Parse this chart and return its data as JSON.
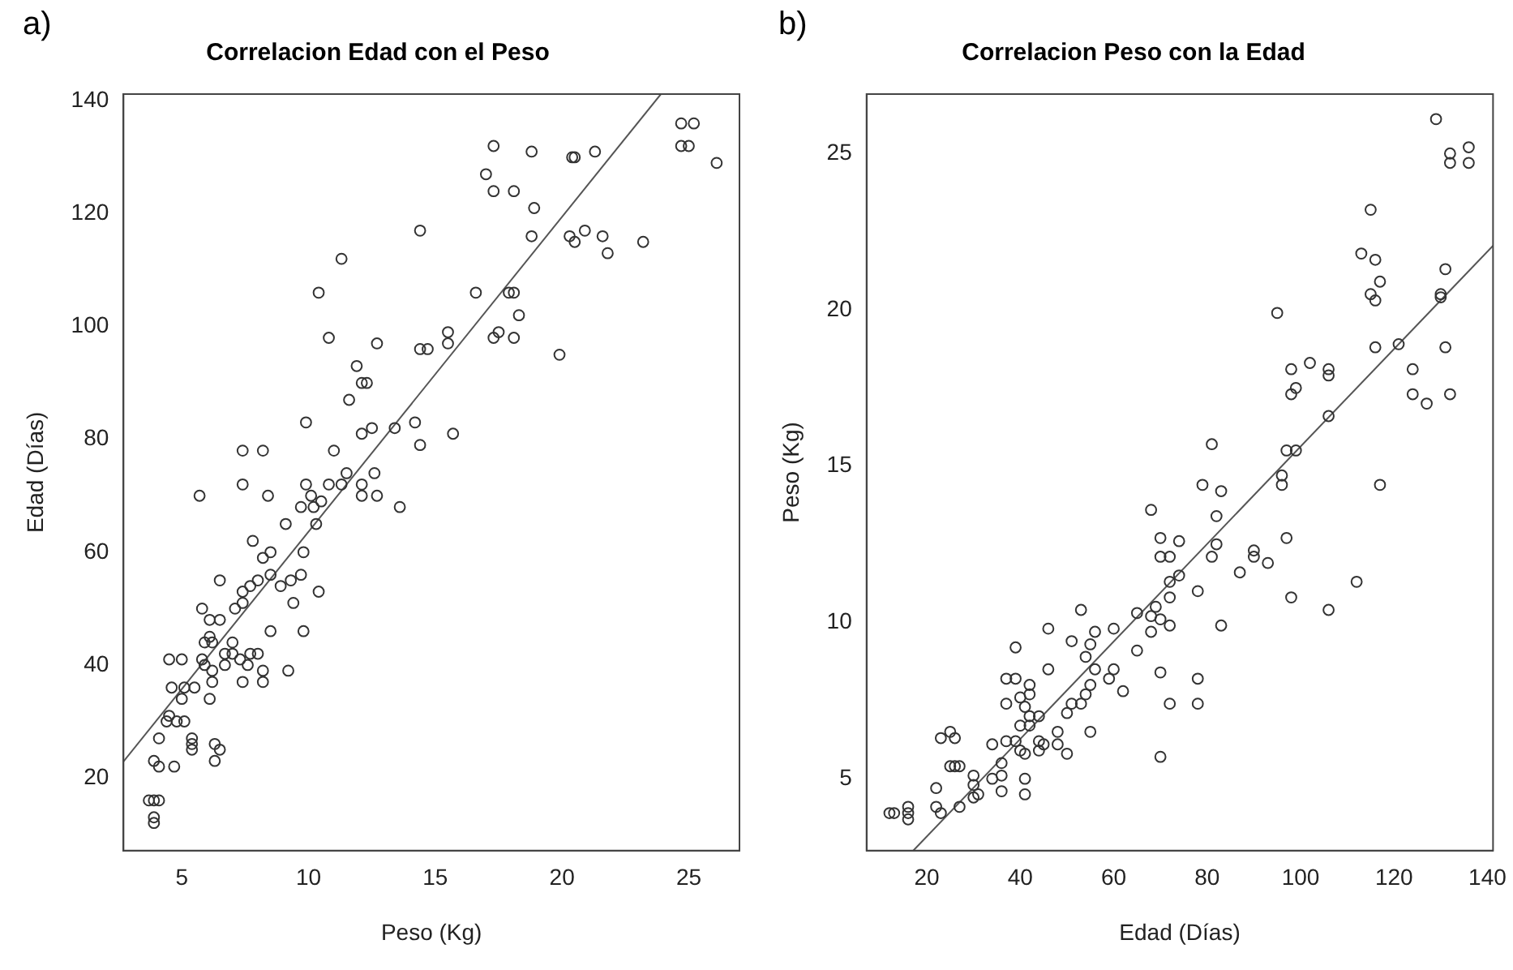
{
  "chart_data": [
    {
      "type": "scatter",
      "title": "Correlacion Edad con el Peso",
      "xlabel": "Peso (Kg)",
      "ylabel": "Edad (Días)",
      "annotations": [
        "a)"
      ],
      "xlim": [
        2.7,
        27.0
      ],
      "ylim": [
        7.1,
        141.2
      ],
      "xticks": [
        5,
        10,
        15,
        20,
        25
      ],
      "yticks": [
        20,
        40,
        60,
        80,
        100,
        120,
        140
      ],
      "grid": false,
      "legend": false,
      "series": [
        {
          "marker": "circle",
          "color": "#333333",
          "x": [
            24.7,
            25.2,
            24.7,
            25.0,
            26.1,
            17.3,
            18.8,
            20.4,
            20.5,
            21.3,
            17.0,
            17.3,
            18.1,
            18.9,
            18.8,
            20.3,
            20.5,
            20.9,
            21.6,
            21.8,
            23.2,
            14.4,
            11.3,
            10.4,
            10.8,
            12.7,
            11.9,
            12.1,
            12.3,
            11.6,
            14.4,
            14.7,
            15.5,
            15.5,
            16.6,
            17.9,
            18.1,
            18.3,
            17.5,
            17.3,
            18.1,
            19.9,
            9.9,
            12.1,
            12.5,
            13.4,
            14.2,
            14.4,
            15.7,
            7.4,
            8.2,
            11.0,
            7.4,
            9.9,
            10.8,
            11.3,
            11.5,
            12.1,
            12.6,
            5.7,
            8.4,
            10.1,
            12.1,
            12.7,
            13.6,
            9.7,
            10.2,
            10.5,
            9.1,
            10.3,
            8.5,
            9.8,
            8.2,
            7.8,
            6.5,
            8.0,
            7.7,
            8.5,
            9.7,
            7.4,
            7.4,
            8.9,
            9.3,
            9.4,
            10.4,
            7.1,
            5.8,
            6.1,
            6.5,
            8.5,
            9.8,
            5.9,
            6.2,
            6.1,
            7.0,
            5.8,
            4.5,
            5.0,
            6.7,
            7.0,
            7.7,
            8.0,
            5.9,
            6.7,
            7.6,
            7.3,
            6.2,
            8.2,
            9.2,
            6.2,
            7.4,
            8.2,
            4.6,
            5.1,
            5.5,
            6.1,
            5.0,
            4.5,
            4.4,
            4.8,
            5.1,
            4.1,
            5.4,
            5.4,
            5.4,
            6.3,
            6.5,
            3.9,
            4.1,
            4.7,
            6.3,
            3.7,
            3.9,
            4.1,
            3.9,
            3.9
          ],
          "values": [
            136,
            136,
            132,
            132,
            129,
            132,
            131,
            130,
            130,
            131,
            127,
            124,
            124,
            121,
            116,
            116,
            115,
            117,
            116,
            113,
            115,
            117,
            112,
            106,
            98,
            97,
            93,
            90,
            90,
            87,
            96,
            96,
            99,
            97,
            106,
            106,
            106,
            102,
            99,
            98,
            98,
            95,
            83,
            81,
            82,
            82,
            83,
            79,
            81,
            78,
            78,
            78,
            72,
            72,
            72,
            72,
            74,
            72,
            74,
            70,
            70,
            70,
            70,
            70,
            68,
            68,
            68,
            69,
            65,
            65,
            60,
            60,
            59,
            62,
            55,
            55,
            54,
            56,
            56,
            53,
            51,
            54,
            55,
            51,
            53,
            50,
            50,
            48,
            48,
            46,
            46,
            44,
            44,
            45,
            44,
            41,
            41,
            41,
            42,
            42,
            42,
            42,
            40,
            40,
            40,
            41,
            39,
            39,
            39,
            37,
            37,
            37,
            36,
            36,
            36,
            34,
            34,
            31,
            30,
            30,
            30,
            27,
            27,
            26,
            25,
            26,
            25,
            23,
            22,
            22,
            23,
            16,
            16,
            16,
            13,
            12
          ]
        },
        {
          "type": "line",
          "marker": "none",
          "color": "#555555",
          "x": [
            2.7,
            23.9
          ],
          "values": [
            22.9,
            141.2
          ]
        }
      ]
    },
    {
      "type": "scatter",
      "title": "Correlacion Peso con la Edad",
      "xlabel": "Edad (Días)",
      "ylabel": "Peso (Kg)",
      "annotations": [
        "b)"
      ],
      "xlim": [
        7.1,
        141.2
      ],
      "ylim": [
        2.7,
        26.9
      ],
      "xticks": [
        20,
        40,
        60,
        80,
        100,
        120,
        140
      ],
      "yticks": [
        5,
        10,
        15,
        20,
        25
      ],
      "grid": false,
      "legend": false,
      "series": [
        {
          "marker": "circle",
          "color": "#333333",
          "x": [
            136,
            136,
            132,
            132,
            129,
            132,
            131,
            130,
            130,
            131,
            127,
            124,
            124,
            121,
            116,
            116,
            115,
            117,
            116,
            113,
            115,
            117,
            112,
            106,
            98,
            97,
            93,
            90,
            90,
            87,
            96,
            96,
            99,
            97,
            106,
            106,
            106,
            102,
            99,
            98,
            98,
            95,
            83,
            81,
            82,
            82,
            83,
            79,
            81,
            78,
            78,
            78,
            72,
            72,
            72,
            72,
            74,
            72,
            74,
            70,
            70,
            70,
            70,
            70,
            68,
            68,
            68,
            69,
            65,
            65,
            60,
            60,
            59,
            62,
            55,
            55,
            54,
            56,
            56,
            53,
            51,
            54,
            55,
            51,
            53,
            50,
            50,
            48,
            48,
            46,
            46,
            44,
            44,
            45,
            44,
            41,
            41,
            41,
            42,
            42,
            42,
            42,
            40,
            40,
            40,
            41,
            39,
            39,
            39,
            37,
            37,
            37,
            36,
            36,
            36,
            34,
            34,
            31,
            30,
            30,
            30,
            27,
            27,
            26,
            25,
            26,
            25,
            23,
            22,
            22,
            23,
            16,
            16,
            16,
            13,
            12
          ],
          "values": [
            24.7,
            25.2,
            24.7,
            25.0,
            26.1,
            17.3,
            18.8,
            20.4,
            20.5,
            21.3,
            17.0,
            17.3,
            18.1,
            18.9,
            18.8,
            20.3,
            20.5,
            20.9,
            21.6,
            21.8,
            23.2,
            14.4,
            11.3,
            10.4,
            10.8,
            12.7,
            11.9,
            12.1,
            12.3,
            11.6,
            14.4,
            14.7,
            15.5,
            15.5,
            16.6,
            17.9,
            18.1,
            18.3,
            17.5,
            17.3,
            18.1,
            19.9,
            9.9,
            12.1,
            12.5,
            13.4,
            14.2,
            14.4,
            15.7,
            7.4,
            8.2,
            11.0,
            7.4,
            9.9,
            10.8,
            11.3,
            11.5,
            12.1,
            12.6,
            5.7,
            8.4,
            10.1,
            12.1,
            12.7,
            13.6,
            9.7,
            10.2,
            10.5,
            9.1,
            10.3,
            8.5,
            9.8,
            8.2,
            7.8,
            6.5,
            8.0,
            7.7,
            8.5,
            9.7,
            7.4,
            7.4,
            8.9,
            9.3,
            9.4,
            10.4,
            7.1,
            5.8,
            6.1,
            6.5,
            8.5,
            9.8,
            5.9,
            6.2,
            6.1,
            7.0,
            5.8,
            4.5,
            5.0,
            6.7,
            7.0,
            7.7,
            8.0,
            5.9,
            6.7,
            7.6,
            7.3,
            6.2,
            8.2,
            9.2,
            6.2,
            7.4,
            8.2,
            4.6,
            5.1,
            5.5,
            6.1,
            5.0,
            4.5,
            4.4,
            4.8,
            5.1,
            4.1,
            5.4,
            5.4,
            5.4,
            6.3,
            6.5,
            3.9,
            4.1,
            4.7,
            6.3,
            3.7,
            3.9,
            4.1,
            3.9,
            3.9
          ]
        },
        {
          "type": "line",
          "marker": "none",
          "color": "#555555",
          "x": [
            17.1,
            141.2
          ],
          "values": [
            2.7,
            22.05
          ]
        }
      ]
    }
  ]
}
